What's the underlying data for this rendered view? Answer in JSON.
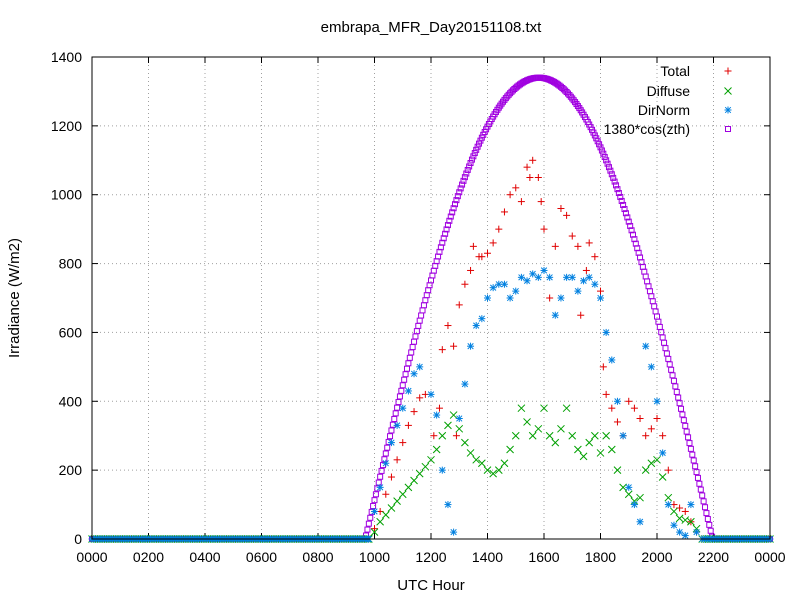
{
  "chart_data": {
    "type": "scatter",
    "title": "embrapa_MFR_Day20151108.txt",
    "xlabel": "UTC Hour",
    "ylabel": "Irradiance (W/m2)",
    "xlim": [
      0,
      24
    ],
    "ylim": [
      0,
      1400
    ],
    "grid": true,
    "legend_position": "top-right",
    "x_ticks": [
      0,
      2,
      4,
      6,
      8,
      10,
      12,
      14,
      16,
      18,
      20,
      22,
      24
    ],
    "x_tick_labels": [
      "0000",
      "0200",
      "0400",
      "0600",
      "0800",
      "1000",
      "1200",
      "1400",
      "1600",
      "1800",
      "2000",
      "2200",
      "0000"
    ],
    "y_ticks": [
      0,
      200,
      400,
      600,
      800,
      1000,
      1200,
      1400
    ],
    "y_tick_labels": [
      "0",
      "200",
      "400",
      "600",
      "800",
      "1000",
      "1200",
      "1400"
    ],
    "series": [
      {
        "name": "Total",
        "marker": "plus",
        "color": "#e00000",
        "points": [
          [
            9.8,
            0
          ],
          [
            10.0,
            30
          ],
          [
            10.2,
            80
          ],
          [
            10.4,
            130
          ],
          [
            10.6,
            180
          ],
          [
            10.8,
            230
          ],
          [
            11.0,
            280
          ],
          [
            11.2,
            330
          ],
          [
            11.4,
            370
          ],
          [
            11.6,
            410
          ],
          [
            11.8,
            420
          ],
          [
            12.1,
            300
          ],
          [
            12.3,
            380
          ],
          [
            12.4,
            550
          ],
          [
            12.6,
            620
          ],
          [
            12.8,
            560
          ],
          [
            12.9,
            300
          ],
          [
            13.0,
            680
          ],
          [
            13.2,
            740
          ],
          [
            13.4,
            780
          ],
          [
            13.5,
            850
          ],
          [
            13.7,
            820
          ],
          [
            13.8,
            820
          ],
          [
            14.0,
            830
          ],
          [
            14.2,
            860
          ],
          [
            14.4,
            900
          ],
          [
            14.6,
            950
          ],
          [
            14.8,
            1000
          ],
          [
            15.0,
            1020
          ],
          [
            15.2,
            980
          ],
          [
            15.4,
            1080
          ],
          [
            15.5,
            1050
          ],
          [
            15.6,
            1100
          ],
          [
            15.8,
            1050
          ],
          [
            15.9,
            980
          ],
          [
            16.0,
            900
          ],
          [
            16.2,
            700
          ],
          [
            16.4,
            850
          ],
          [
            16.6,
            960
          ],
          [
            16.8,
            940
          ],
          [
            17.0,
            880
          ],
          [
            17.2,
            850
          ],
          [
            17.3,
            650
          ],
          [
            17.5,
            780
          ],
          [
            17.6,
            860
          ],
          [
            17.8,
            820
          ],
          [
            18.0,
            720
          ],
          [
            18.1,
            500
          ],
          [
            18.2,
            420
          ],
          [
            18.4,
            380
          ],
          [
            18.6,
            340
          ],
          [
            18.8,
            300
          ],
          [
            19.0,
            400
          ],
          [
            19.2,
            380
          ],
          [
            19.4,
            350
          ],
          [
            19.6,
            300
          ],
          [
            19.8,
            320
          ],
          [
            20.0,
            350
          ],
          [
            20.2,
            300
          ],
          [
            20.4,
            200
          ],
          [
            20.6,
            100
          ],
          [
            20.8,
            90
          ],
          [
            21.0,
            80
          ],
          [
            21.2,
            50
          ],
          [
            21.4,
            20
          ],
          [
            21.6,
            0
          ]
        ]
      },
      {
        "name": "Diffuse",
        "marker": "cross",
        "color": "#00a000",
        "points": [
          [
            9.8,
            0
          ],
          [
            10.0,
            20
          ],
          [
            10.2,
            50
          ],
          [
            10.4,
            70
          ],
          [
            10.6,
            90
          ],
          [
            10.8,
            110
          ],
          [
            11.0,
            130
          ],
          [
            11.2,
            150
          ],
          [
            11.4,
            170
          ],
          [
            11.6,
            190
          ],
          [
            11.8,
            210
          ],
          [
            12.0,
            230
          ],
          [
            12.2,
            260
          ],
          [
            12.4,
            300
          ],
          [
            12.6,
            330
          ],
          [
            12.8,
            360
          ],
          [
            13.0,
            320
          ],
          [
            13.2,
            280
          ],
          [
            13.4,
            250
          ],
          [
            13.6,
            230
          ],
          [
            13.8,
            220
          ],
          [
            14.0,
            200
          ],
          [
            14.2,
            190
          ],
          [
            14.4,
            200
          ],
          [
            14.6,
            220
          ],
          [
            14.8,
            260
          ],
          [
            15.0,
            300
          ],
          [
            15.2,
            380
          ],
          [
            15.4,
            340
          ],
          [
            15.6,
            300
          ],
          [
            15.8,
            320
          ],
          [
            16.0,
            380
          ],
          [
            16.2,
            300
          ],
          [
            16.4,
            280
          ],
          [
            16.6,
            320
          ],
          [
            16.8,
            380
          ],
          [
            17.0,
            300
          ],
          [
            17.2,
            260
          ],
          [
            17.4,
            240
          ],
          [
            17.6,
            280
          ],
          [
            17.8,
            300
          ],
          [
            18.0,
            250
          ],
          [
            18.2,
            300
          ],
          [
            18.4,
            260
          ],
          [
            18.6,
            200
          ],
          [
            18.8,
            150
          ],
          [
            19.0,
            130
          ],
          [
            19.2,
            110
          ],
          [
            19.4,
            120
          ],
          [
            19.6,
            200
          ],
          [
            19.8,
            220
          ],
          [
            20.0,
            230
          ],
          [
            20.2,
            180
          ],
          [
            20.4,
            120
          ],
          [
            20.6,
            80
          ],
          [
            20.8,
            60
          ],
          [
            21.0,
            55
          ],
          [
            21.2,
            50
          ],
          [
            21.4,
            30
          ],
          [
            21.6,
            0
          ]
        ]
      },
      {
        "name": "DirNorm",
        "marker": "star",
        "color": "#0080e0",
        "points": [
          [
            9.8,
            0
          ],
          [
            10.0,
            80
          ],
          [
            10.2,
            150
          ],
          [
            10.4,
            220
          ],
          [
            10.6,
            280
          ],
          [
            10.8,
            330
          ],
          [
            11.0,
            380
          ],
          [
            11.2,
            430
          ],
          [
            11.4,
            480
          ],
          [
            11.6,
            500
          ],
          [
            12.0,
            420
          ],
          [
            12.2,
            360
          ],
          [
            12.4,
            200
          ],
          [
            12.6,
            100
          ],
          [
            12.8,
            20
          ],
          [
            13.0,
            350
          ],
          [
            13.2,
            450
          ],
          [
            13.4,
            560
          ],
          [
            13.6,
            620
          ],
          [
            13.8,
            640
          ],
          [
            14.0,
            700
          ],
          [
            14.2,
            730
          ],
          [
            14.4,
            740
          ],
          [
            14.6,
            740
          ],
          [
            14.8,
            700
          ],
          [
            15.0,
            720
          ],
          [
            15.2,
            760
          ],
          [
            15.4,
            750
          ],
          [
            15.6,
            770
          ],
          [
            15.8,
            760
          ],
          [
            16.0,
            780
          ],
          [
            16.2,
            760
          ],
          [
            16.4,
            650
          ],
          [
            16.6,
            700
          ],
          [
            16.8,
            760
          ],
          [
            17.0,
            760
          ],
          [
            17.2,
            720
          ],
          [
            17.4,
            750
          ],
          [
            17.6,
            760
          ],
          [
            17.8,
            740
          ],
          [
            18.0,
            700
          ],
          [
            18.2,
            600
          ],
          [
            18.4,
            520
          ],
          [
            18.6,
            400
          ],
          [
            18.8,
            300
          ],
          [
            19.0,
            150
          ],
          [
            19.2,
            100
          ],
          [
            19.4,
            50
          ],
          [
            19.6,
            560
          ],
          [
            19.8,
            500
          ],
          [
            20.0,
            400
          ],
          [
            20.2,
            250
          ],
          [
            20.4,
            100
          ],
          [
            20.6,
            40
          ],
          [
            20.8,
            20
          ],
          [
            21.0,
            10
          ],
          [
            21.2,
            100
          ],
          [
            21.4,
            20
          ],
          [
            21.6,
            0
          ]
        ]
      },
      {
        "name": "1380*cos(zth)",
        "marker": "square",
        "color": "#a000e0",
        "peak": 1340,
        "peak_x": 15.82,
        "start_x": 9.67,
        "end_x": 21.97
      }
    ]
  }
}
